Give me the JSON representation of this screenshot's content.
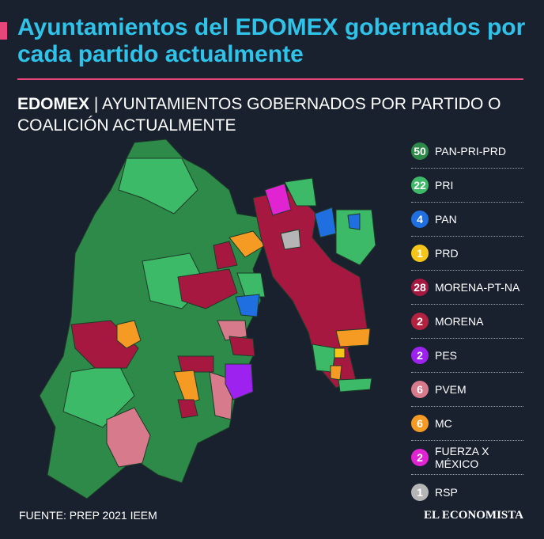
{
  "header": {
    "title": "Ayuntamientos del EDOMEX gobernados por cada partido actualmente",
    "subtitle_bold": "EDOMEX",
    "subtitle": "| AYUNTAMIENTOS GOBERNADOS POR PARTIDO O COALICIÓN ACTUALMENTE"
  },
  "legend": [
    {
      "count": "50",
      "label": "PAN-PRI-PRD",
      "color": "#2e8a48"
    },
    {
      "count": "22",
      "label": "PRI",
      "color": "#3cba68"
    },
    {
      "count": "4",
      "label": "PAN",
      "color": "#1f6fe0"
    },
    {
      "count": "1",
      "label": "PRD",
      "color": "#f5c518"
    },
    {
      "count": "28",
      "label": "MORENA-PT-NA",
      "color": "#a6183f"
    },
    {
      "count": "2",
      "label": "MORENA",
      "color": "#b3223f"
    },
    {
      "count": "2",
      "label": "PES",
      "color": "#9d22ef"
    },
    {
      "count": "6",
      "label": "PVEM",
      "color": "#d77b8c"
    },
    {
      "count": "6",
      "label": "MC",
      "color": "#f59a23"
    },
    {
      "count": "2",
      "label": "FUERZA X MÉXICO",
      "color": "#e024d2"
    },
    {
      "count": "1",
      "label": "RSP",
      "color": "#b5b5b5"
    }
  ],
  "footer": {
    "source": "FUENTE: PREP 2021 IEEM",
    "brand": "EL ECONOMISTA"
  }
}
